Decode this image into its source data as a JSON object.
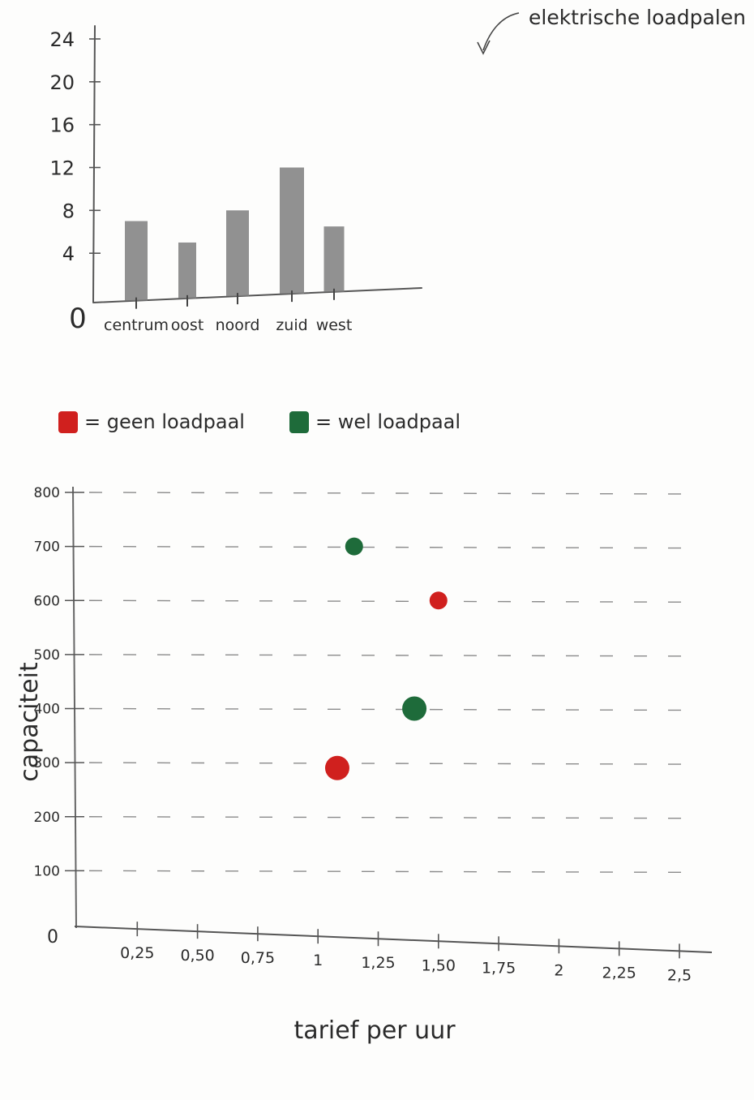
{
  "chart_data": [
    {
      "type": "bar",
      "title": "",
      "annotation": "elektrische loadpalen",
      "xlabel": "",
      "ylabel": "",
      "categories": [
        "centrum",
        "oost",
        "noord",
        "zuid",
        "west"
      ],
      "values": [
        7,
        5,
        8,
        12,
        6.5
      ],
      "ylim": [
        0,
        24
      ],
      "yticks": [
        4,
        8,
        12,
        16,
        20,
        24
      ],
      "yticklabels": [
        "4",
        "8",
        "12",
        "16",
        "20",
        "24"
      ],
      "origin_label": "0",
      "bar_color": "#7e7e7e",
      "grid": false
    },
    {
      "type": "scatter",
      "title": "",
      "xlabel": "tarief per uur",
      "ylabel": "capaciteit",
      "xlim": [
        0,
        2.5
      ],
      "ylim": [
        0,
        800
      ],
      "xticks": [
        0.25,
        0.5,
        0.75,
        1,
        1.25,
        1.5,
        1.75,
        2,
        2.25,
        2.5
      ],
      "xticklabels": [
        "0,25",
        "0,50",
        "0,75",
        "1",
        "1,25",
        "1,50",
        "1,75",
        "2",
        "2,25",
        "2,5"
      ],
      "yticks": [
        100,
        200,
        300,
        400,
        500,
        600,
        700,
        800
      ],
      "yticklabels": [
        "100",
        "200",
        "300",
        "400",
        "500",
        "600",
        "700",
        "800"
      ],
      "origin_label": "0",
      "grid": true,
      "legend": [
        {
          "label": "= geen loadpaal",
          "color": "#d0201e"
        },
        {
          "label": "= wel loadpaal",
          "color": "#1e6b3a"
        }
      ],
      "series": [
        {
          "legend_index": 0,
          "color": "#d0201e",
          "points": [
            [
              1.5,
              600
            ],
            [
              1.08,
              290
            ]
          ]
        },
        {
          "legend_index": 1,
          "color": "#1e6b3a",
          "points": [
            [
              1.15,
              700
            ],
            [
              1.4,
              400
            ]
          ]
        }
      ]
    }
  ]
}
